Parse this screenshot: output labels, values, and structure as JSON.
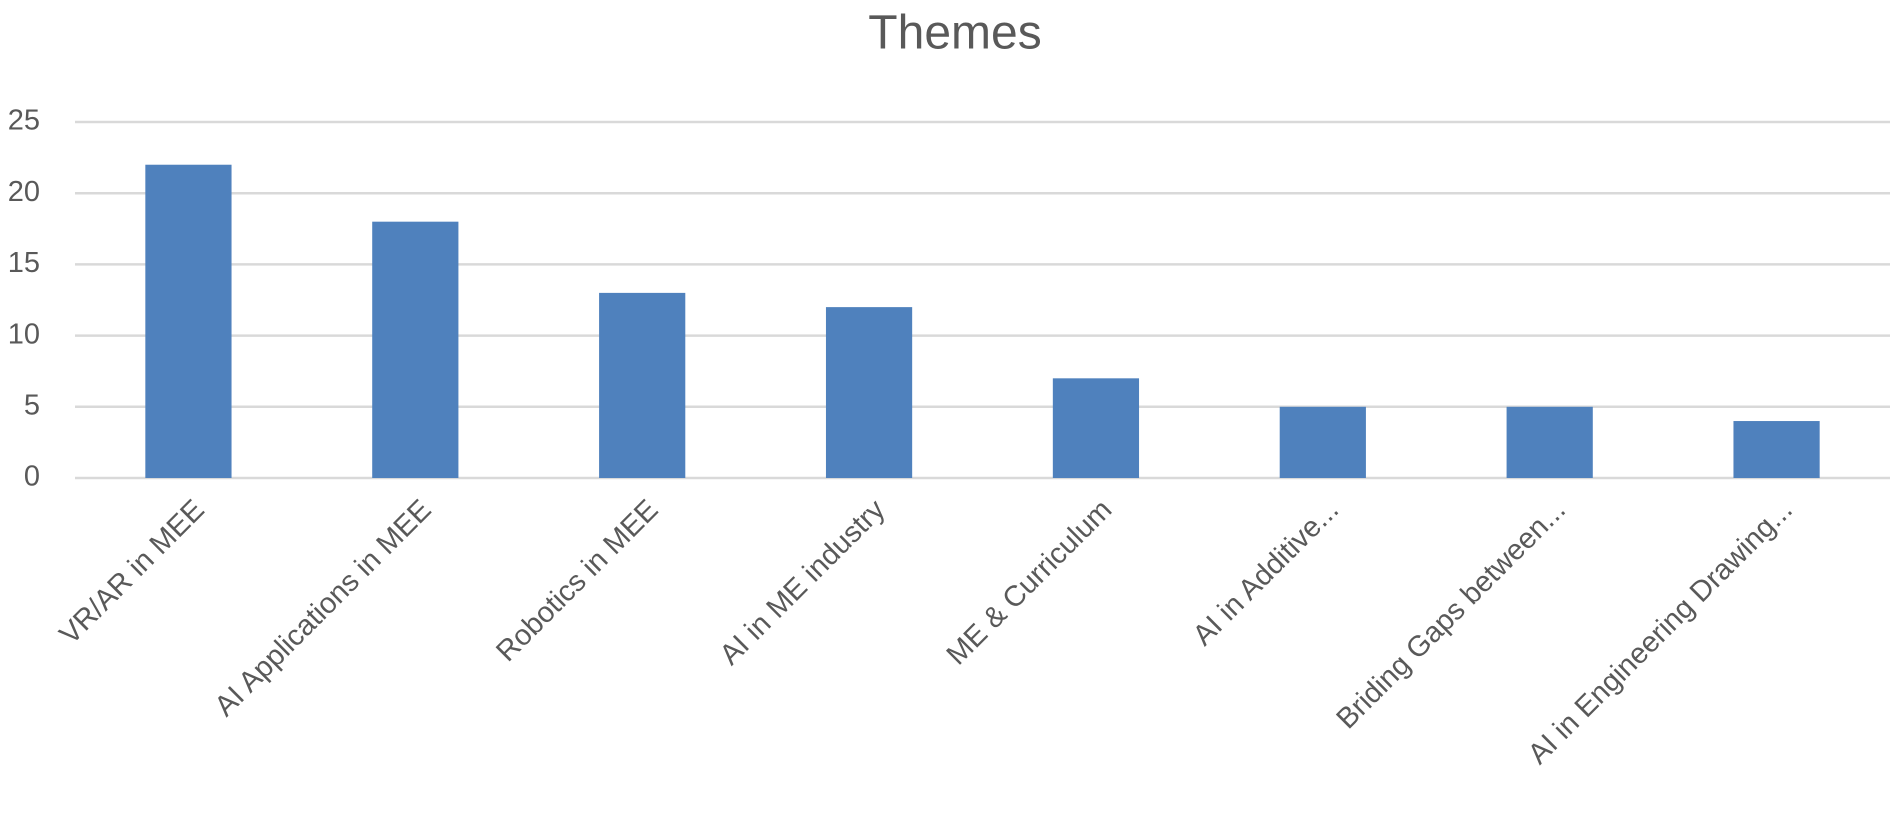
{
  "chart_data": {
    "type": "bar",
    "title": "Themes",
    "categories": [
      "VR/AR in MEE",
      "AI Applications in MEE",
      "Robotics in MEE",
      "AI in ME industry",
      "ME & Curriculum",
      "AI in Additive...",
      "Briding Gaps between...",
      "AI in Engineering Drawing..."
    ],
    "values": [
      22,
      18,
      13,
      12,
      7,
      5,
      5,
      4
    ],
    "color": "#4f81bd",
    "ylim": [
      0,
      25
    ],
    "yticks": [
      0,
      5,
      10,
      15,
      20,
      25
    ],
    "grid": true
  }
}
